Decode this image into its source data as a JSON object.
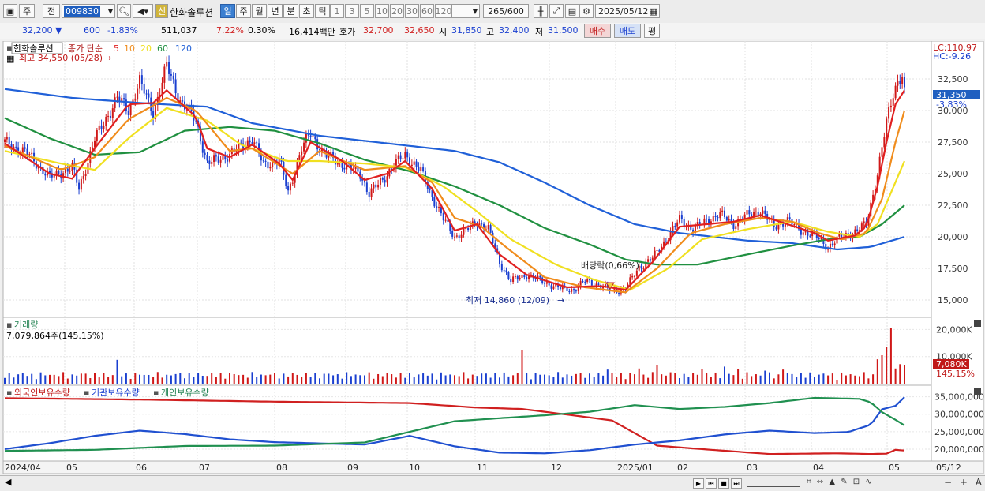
{
  "toolbar": {
    "market": "주",
    "period_label": "전",
    "code": "009830",
    "name_badge": "신",
    "name": "한화솔루션",
    "periods": [
      "일",
      "주",
      "월",
      "년",
      "분",
      "초",
      "틱"
    ],
    "active_period": "일",
    "intervals": [
      "1",
      "3",
      "5",
      "10",
      "20",
      "30",
      "60",
      "120"
    ],
    "range": "265/600",
    "date": "2025/05/12"
  },
  "quote": {
    "price": "32,200 ▼",
    "change": "600",
    "change_pct": "-1.83%",
    "volume": "511,037",
    "turnover_pct": "7.22%",
    "rate": "0.30%",
    "amount": "16,414백만",
    "bid_label": "호가",
    "ask": "32,700",
    "bid": "32,650",
    "open_label": "시",
    "open": "31,850",
    "high_label": "고",
    "high": "32,400",
    "low_label": "저",
    "low": "31,500",
    "buy_button": "매수",
    "sell_button": "매도",
    "eval_button": "평"
  },
  "legend": {
    "name": "한화솔루션",
    "series_label": "종가 단순",
    "ma": [
      {
        "period": "5",
        "color": "#e02020"
      },
      {
        "period": "10",
        "color": "#f08c1c"
      },
      {
        "period": "20",
        "color": "#f0e020"
      },
      {
        "period": "60",
        "color": "#209040"
      },
      {
        "period": "120",
        "color": "#2060d8"
      }
    ]
  },
  "annotations": {
    "high": "최고 34,550 (05/28)",
    "low": "최저 14,860 (12/09)",
    "dividend": "배당락(0,66%)",
    "lc": "LC:110.97",
    "hc": "HC:-9.26",
    "last_price": "31,350",
    "last_pct": "-3.83%"
  },
  "volume_panel": {
    "title": "거래량",
    "info": "7,079,864주(145.15%)",
    "last_label": "7,080K",
    "last_pct": "145.15%"
  },
  "holdings_panel": {
    "series": [
      "외국인보유수량",
      "기관보유수량",
      "개인보유수량"
    ],
    "colors": [
      "#d02020",
      "#2050d0",
      "#209050"
    ]
  },
  "chart_data": {
    "type": "candlestick",
    "price_axis": {
      "ticks": [
        15000,
        17500,
        20000,
        22500,
        25000,
        27500,
        30000,
        32500
      ],
      "range": [
        14000,
        35000
      ]
    },
    "volume_axis": {
      "ticks_labels": [
        "10,000K",
        "20,000K"
      ],
      "ticks": [
        10000,
        20000
      ],
      "max": 21000
    },
    "holdings_axis": {
      "ticks_labels": [
        "20,000,000",
        "25,000,000",
        "30,000,000",
        "35,000,000"
      ],
      "ticks": [
        20000000,
        25000000,
        30000000,
        35000000
      ],
      "range": [
        17500000,
        36500000
      ]
    },
    "x_labels": [
      "2024/04",
      "05",
      "06",
      "07",
      "08",
      "09",
      "10",
      "11",
      "12",
      "2025/01",
      "02",
      "03",
      "04",
      "05",
      "05/12"
    ],
    "close_path": [
      [
        0,
        27500
      ],
      [
        10,
        26600
      ],
      [
        20,
        24700
      ],
      [
        30,
        25500
      ],
      [
        33,
        23800
      ],
      [
        40,
        27700
      ],
      [
        50,
        31000
      ],
      [
        55,
        30000
      ],
      [
        60,
        32300
      ],
      [
        66,
        29800
      ],
      [
        72,
        33500
      ],
      [
        78,
        30800
      ],
      [
        85,
        29200
      ],
      [
        90,
        25800
      ],
      [
        100,
        26500
      ],
      [
        110,
        27800
      ],
      [
        115,
        25700
      ],
      [
        122,
        26100
      ],
      [
        126,
        23500
      ],
      [
        132,
        27000
      ],
      [
        136,
        28200
      ],
      [
        142,
        26500
      ],
      [
        150,
        25800
      ],
      [
        158,
        25000
      ],
      [
        162,
        23400
      ],
      [
        168,
        24500
      ],
      [
        172,
        25500
      ],
      [
        178,
        26500
      ],
      [
        185,
        25200
      ],
      [
        190,
        23200
      ],
      [
        195,
        21400
      ],
      [
        200,
        20000
      ],
      [
        205,
        20500
      ],
      [
        210,
        21200
      ],
      [
        215,
        20600
      ],
      [
        220,
        18000
      ],
      [
        225,
        16500
      ],
      [
        232,
        17000
      ],
      [
        240,
        16400
      ],
      [
        247,
        15900
      ],
      [
        253,
        15800
      ],
      [
        258,
        16500
      ],
      [
        264,
        16200
      ],
      [
        270,
        15700
      ],
      [
        276,
        15900
      ],
      [
        282,
        17600
      ],
      [
        288,
        18300
      ],
      [
        294,
        19800
      ],
      [
        300,
        21400
      ],
      [
        306,
        20600
      ],
      [
        312,
        21300
      ],
      [
        318,
        21800
      ],
      [
        324,
        21000
      ],
      [
        330,
        21700
      ],
      [
        336,
        22100
      ],
      [
        342,
        20800
      ],
      [
        348,
        21300
      ],
      [
        354,
        20500
      ],
      [
        360,
        20100
      ],
      [
        366,
        19200
      ],
      [
        372,
        20000
      ],
      [
        378,
        20400
      ],
      [
        383,
        21000
      ],
      [
        388,
        25000
      ],
      [
        392,
        29000
      ],
      [
        395,
        31400
      ],
      [
        397,
        32400
      ],
      [
        399,
        32800
      ],
      [
        400,
        31350
      ]
    ],
    "ma5_path": [
      [
        0,
        27400
      ],
      [
        20,
        25000
      ],
      [
        30,
        24600
      ],
      [
        40,
        27000
      ],
      [
        55,
        30500
      ],
      [
        66,
        30600
      ],
      [
        72,
        31600
      ],
      [
        85,
        29500
      ],
      [
        90,
        27000
      ],
      [
        100,
        26300
      ],
      [
        110,
        27300
      ],
      [
        122,
        25800
      ],
      [
        128,
        24500
      ],
      [
        136,
        27500
      ],
      [
        150,
        26000
      ],
      [
        160,
        24500
      ],
      [
        170,
        25000
      ],
      [
        178,
        26000
      ],
      [
        190,
        23800
      ],
      [
        200,
        20500
      ],
      [
        210,
        21000
      ],
      [
        220,
        18600
      ],
      [
        232,
        17000
      ],
      [
        250,
        16000
      ],
      [
        265,
        16100
      ],
      [
        276,
        15800
      ],
      [
        288,
        18000
      ],
      [
        300,
        20800
      ],
      [
        312,
        21000
      ],
      [
        324,
        21200
      ],
      [
        336,
        21700
      ],
      [
        348,
        21000
      ],
      [
        360,
        20300
      ],
      [
        366,
        19700
      ],
      [
        378,
        20100
      ],
      [
        383,
        20800
      ],
      [
        388,
        24000
      ],
      [
        392,
        27500
      ],
      [
        396,
        30500
      ],
      [
        400,
        31600
      ]
    ],
    "ma10_path": [
      [
        0,
        27200
      ],
      [
        25,
        25300
      ],
      [
        40,
        26300
      ],
      [
        55,
        29300
      ],
      [
        72,
        31000
      ],
      [
        85,
        30000
      ],
      [
        100,
        26800
      ],
      [
        110,
        27000
      ],
      [
        128,
        25000
      ],
      [
        140,
        26800
      ],
      [
        160,
        25300
      ],
      [
        178,
        25600
      ],
      [
        190,
        24300
      ],
      [
        200,
        21500
      ],
      [
        212,
        20800
      ],
      [
        222,
        19300
      ],
      [
        240,
        16800
      ],
      [
        258,
        16000
      ],
      [
        276,
        15600
      ],
      [
        290,
        17500
      ],
      [
        305,
        20300
      ],
      [
        320,
        21000
      ],
      [
        336,
        21500
      ],
      [
        350,
        21200
      ],
      [
        362,
        20300
      ],
      [
        372,
        19800
      ],
      [
        383,
        20300
      ],
      [
        390,
        23000
      ],
      [
        396,
        27500
      ],
      [
        400,
        30000
      ]
    ],
    "ma20_path": [
      [
        0,
        26800
      ],
      [
        25,
        25800
      ],
      [
        40,
        25300
      ],
      [
        55,
        27800
      ],
      [
        72,
        30200
      ],
      [
        90,
        29200
      ],
      [
        105,
        27300
      ],
      [
        125,
        26000
      ],
      [
        140,
        26000
      ],
      [
        160,
        25800
      ],
      [
        178,
        25500
      ],
      [
        195,
        24000
      ],
      [
        210,
        22000
      ],
      [
        225,
        19800
      ],
      [
        245,
        17800
      ],
      [
        262,
        16600
      ],
      [
        278,
        15800
      ],
      [
        295,
        17500
      ],
      [
        310,
        19800
      ],
      [
        330,
        20600
      ],
      [
        350,
        21200
      ],
      [
        366,
        20400
      ],
      [
        380,
        20000
      ],
      [
        388,
        21000
      ],
      [
        394,
        23500
      ],
      [
        400,
        26000
      ]
    ],
    "ma60_path": [
      [
        0,
        29400
      ],
      [
        20,
        27800
      ],
      [
        40,
        26500
      ],
      [
        60,
        26700
      ],
      [
        80,
        28400
      ],
      [
        100,
        28700
      ],
      [
        120,
        28400
      ],
      [
        140,
        27400
      ],
      [
        160,
        26100
      ],
      [
        180,
        25200
      ],
      [
        200,
        24000
      ],
      [
        220,
        22500
      ],
      [
        240,
        20700
      ],
      [
        260,
        19400
      ],
      [
        276,
        18200
      ],
      [
        290,
        17800
      ],
      [
        308,
        17800
      ],
      [
        330,
        18600
      ],
      [
        350,
        19300
      ],
      [
        366,
        19800
      ],
      [
        380,
        20000
      ],
      [
        390,
        21000
      ],
      [
        400,
        22500
      ]
    ],
    "ma120_path": [
      [
        0,
        31700
      ],
      [
        30,
        31000
      ],
      [
        60,
        30600
      ],
      [
        90,
        30300
      ],
      [
        110,
        29000
      ],
      [
        140,
        28000
      ],
      [
        170,
        27400
      ],
      [
        200,
        26800
      ],
      [
        220,
        25900
      ],
      [
        240,
        24300
      ],
      [
        260,
        22500
      ],
      [
        280,
        21000
      ],
      [
        300,
        20300
      ],
      [
        330,
        19700
      ],
      [
        350,
        19500
      ],
      [
        370,
        19000
      ],
      [
        385,
        19200
      ],
      [
        400,
        20000
      ]
    ],
    "volume_spikes": [
      [
        45,
        12000
      ],
      [
        50,
        8800
      ],
      [
        230,
        12500
      ],
      [
        268,
        5200
      ],
      [
        282,
        5600
      ],
      [
        290,
        6800
      ],
      [
        296,
        4200
      ],
      [
        305,
        6200
      ],
      [
        310,
        5400
      ],
      [
        320,
        6300
      ],
      [
        326,
        5400
      ],
      [
        338,
        4800
      ],
      [
        346,
        5200
      ],
      [
        388,
        9000
      ],
      [
        390,
        10500
      ],
      [
        392,
        13500
      ],
      [
        394,
        20500
      ],
      [
        396,
        5600
      ],
      [
        398,
        7200
      ],
      [
        400,
        7000
      ]
    ],
    "foreign_path": [
      [
        0,
        34600
      ],
      [
        60,
        34200
      ],
      [
        120,
        33600
      ],
      [
        180,
        33200
      ],
      [
        210,
        31900
      ],
      [
        230,
        31500
      ],
      [
        250,
        29900
      ],
      [
        270,
        28200
      ],
      [
        290,
        21000
      ],
      [
        310,
        20000
      ],
      [
        340,
        18600
      ],
      [
        370,
        18800
      ],
      [
        385,
        18600
      ],
      [
        392,
        18700
      ],
      [
        396,
        19800
      ],
      [
        400,
        19600
      ]
    ],
    "institution_path": [
      [
        0,
        20000
      ],
      [
        20,
        21700
      ],
      [
        40,
        23800
      ],
      [
        60,
        25300
      ],
      [
        80,
        24300
      ],
      [
        100,
        22800
      ],
      [
        120,
        22000
      ],
      [
        160,
        21300
      ],
      [
        180,
        23800
      ],
      [
        200,
        20800
      ],
      [
        220,
        19000
      ],
      [
        240,
        18800
      ],
      [
        260,
        19700
      ],
      [
        280,
        21300
      ],
      [
        300,
        22500
      ],
      [
        320,
        24200
      ],
      [
        340,
        25300
      ],
      [
        360,
        24600
      ],
      [
        375,
        24900
      ],
      [
        385,
        27000
      ],
      [
        390,
        31400
      ],
      [
        396,
        32400
      ],
      [
        400,
        34900
      ]
    ],
    "individual_path": [
      [
        0,
        19500
      ],
      [
        40,
        19800
      ],
      [
        80,
        20900
      ],
      [
        120,
        21000
      ],
      [
        160,
        21900
      ],
      [
        200,
        28000
      ],
      [
        240,
        29700
      ],
      [
        260,
        30700
      ],
      [
        280,
        32600
      ],
      [
        300,
        31500
      ],
      [
        320,
        32100
      ],
      [
        340,
        33200
      ],
      [
        360,
        34700
      ],
      [
        380,
        34400
      ],
      [
        385,
        33400
      ],
      [
        390,
        30600
      ],
      [
        396,
        28400
      ],
      [
        400,
        26800
      ]
    ]
  }
}
